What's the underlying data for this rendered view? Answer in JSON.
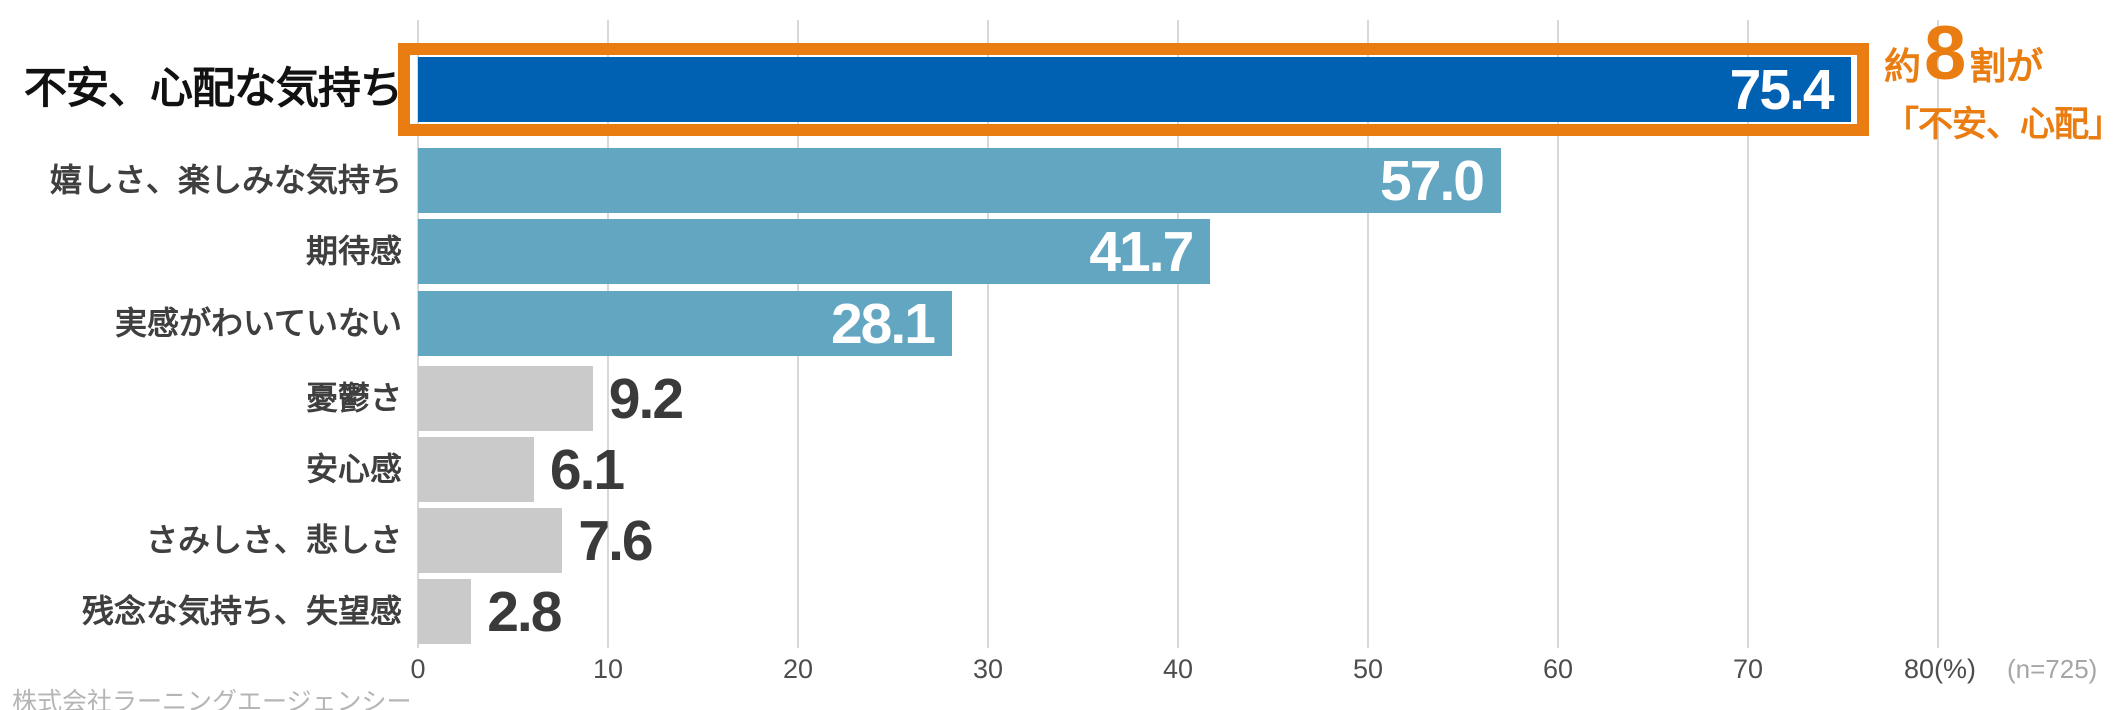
{
  "colors": {
    "highlight_bar": "#0060B2",
    "secondary_bar": "#63A6C2",
    "minor_bar": "#CACACA",
    "accent_orange": "#EA7D12",
    "value_text_inside": "#FFFFFF",
    "value_text_outside": "#3A3A3A",
    "label_primary": "#111111",
    "label_secondary": "#3F3F3F",
    "axis_text": "#4D4D4D",
    "muted_text": "#A6A6A6",
    "gridline": "#D8D8D8",
    "source_text": "#B5B5B5"
  },
  "chart_data": {
    "type": "bar",
    "orientation": "horizontal",
    "categories": [
      "不安、心配な気持ち",
      "嬉しさ、楽しみな気持ち",
      "期待感",
      "実感がわいていない",
      "憂鬱さ",
      "安心感",
      "さみしさ、悲しさ",
      "残念な気持ち、失望感"
    ],
    "values": [
      75.4,
      57.0,
      41.7,
      28.1,
      9.2,
      6.1,
      7.6,
      2.8
    ],
    "value_labels": [
      "75.4",
      "57.0",
      "41.7",
      "28.1",
      "9.2",
      "6.1",
      "7.6",
      "2.8"
    ],
    "bar_roles": [
      "highlight",
      "secondary",
      "secondary",
      "secondary",
      "minor",
      "minor",
      "minor",
      "minor"
    ],
    "value_label_inside": [
      true,
      true,
      true,
      true,
      false,
      false,
      false,
      false
    ],
    "highlight_index": 0,
    "xlim": [
      0,
      80
    ],
    "x_ticks": [
      0,
      10,
      20,
      30,
      40,
      50,
      60,
      70,
      80
    ],
    "x_tick_labels": [
      "0",
      "10",
      "20",
      "30",
      "40",
      "50",
      "60",
      "70",
      "80(%)"
    ],
    "sample_size": "(n=725)",
    "grid": true,
    "legend": false
  },
  "annotation": {
    "line1_prefix": "約",
    "line1_big": "8",
    "line1_suffix": "割が",
    "line2": "「不安、心配」"
  },
  "source": "株式会社ラーニングエージェンシー"
}
